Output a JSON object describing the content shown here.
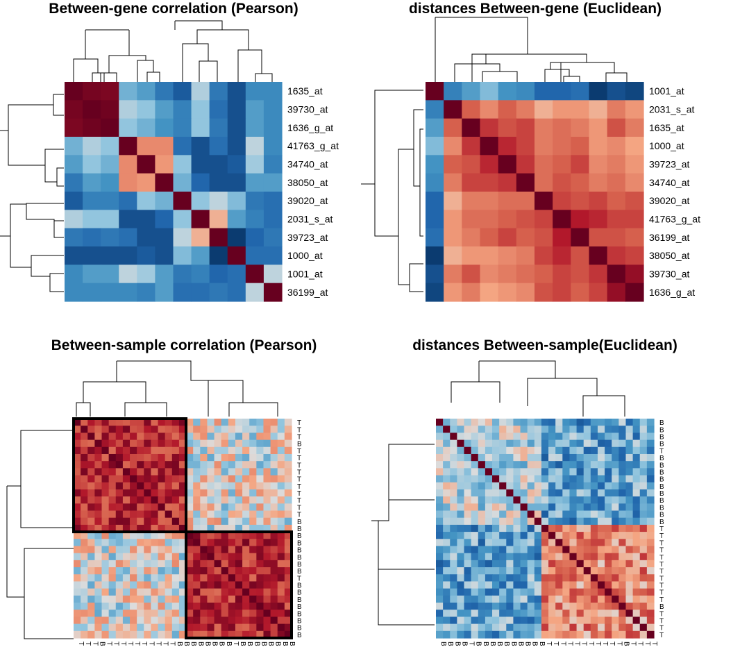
{
  "chart_data": [
    {
      "type": "heatmap",
      "title": "Between-gene correlation (Pearson)",
      "row_labels": [
        "1635_at",
        "39730_at",
        "1636_g_at",
        "41763_g_at",
        "34740_at",
        "38050_at",
        "39020_at",
        "2031_s_at",
        "39723_at",
        "1000_at",
        "1001_at",
        "36199_at"
      ],
      "values": [
        [
          1.0,
          0.95,
          0.93,
          -0.35,
          -0.45,
          -0.65,
          -0.8,
          -0.15,
          -0.65,
          -0.85,
          -0.55,
          -0.55
        ],
        [
          0.95,
          1.0,
          0.97,
          -0.15,
          -0.25,
          -0.45,
          -0.6,
          -0.25,
          -0.7,
          -0.85,
          -0.45,
          -0.55
        ],
        [
          0.93,
          0.97,
          1.0,
          -0.25,
          -0.35,
          -0.5,
          -0.6,
          -0.25,
          -0.65,
          -0.85,
          -0.45,
          -0.55
        ],
        [
          -0.35,
          -0.15,
          -0.25,
          1.0,
          0.35,
          0.35,
          -0.7,
          -0.85,
          -0.7,
          -0.85,
          -0.1,
          -0.55
        ],
        [
          -0.45,
          -0.25,
          -0.35,
          0.35,
          1.0,
          0.3,
          -0.25,
          -0.85,
          -0.85,
          -0.8,
          -0.2,
          -0.6
        ],
        [
          -0.65,
          -0.45,
          -0.5,
          0.35,
          0.3,
          1.0,
          -0.35,
          -0.75,
          -0.85,
          -0.85,
          -0.45,
          -0.45
        ],
        [
          -0.8,
          -0.6,
          -0.6,
          -0.7,
          -0.25,
          -0.35,
          1.0,
          -0.25,
          -0.1,
          -0.3,
          -0.65,
          -0.7
        ],
        [
          -0.15,
          -0.25,
          -0.25,
          -0.85,
          -0.85,
          -0.75,
          -0.25,
          1.0,
          0.2,
          -0.45,
          -0.6,
          -0.7
        ],
        [
          -0.65,
          -0.7,
          -0.65,
          -0.7,
          -0.85,
          -0.85,
          -0.1,
          0.2,
          1.0,
          -0.95,
          -0.75,
          -0.65
        ],
        [
          -0.85,
          -0.85,
          -0.85,
          -0.85,
          -0.8,
          -0.85,
          -0.3,
          -0.45,
          -0.95,
          1.0,
          -0.7,
          -0.7
        ],
        [
          -0.55,
          -0.45,
          -0.45,
          -0.1,
          -0.2,
          -0.45,
          -0.65,
          -0.6,
          -0.75,
          -0.7,
          1.0,
          -0.1
        ],
        [
          -0.55,
          -0.55,
          -0.55,
          -0.55,
          -0.6,
          -0.45,
          -0.7,
          -0.7,
          -0.65,
          -0.7,
          -0.1,
          1.0
        ]
      ],
      "highlight_blocks": []
    },
    {
      "type": "heatmap",
      "title": "distances Between-gene (Euclidean)",
      "row_labels": [
        "1001_at",
        "2031_s_at",
        "1635_at",
        "1000_at",
        "39723_at",
        "34740_at",
        "39020_at",
        "41763_g_at",
        "36199_at",
        "38050_at",
        "39730_at",
        "1636_g_at"
      ],
      "values": [
        [
          1.0,
          -0.6,
          -0.45,
          -0.3,
          -0.5,
          -0.55,
          -0.75,
          -0.75,
          -0.7,
          -0.95,
          -0.85,
          -0.9
        ],
        [
          -0.6,
          1.0,
          0.5,
          0.35,
          0.5,
          0.4,
          0.2,
          0.3,
          0.3,
          0.2,
          0.4,
          0.3
        ],
        [
          -0.45,
          0.5,
          1.0,
          0.65,
          0.55,
          0.6,
          0.4,
          0.45,
          0.4,
          0.3,
          0.55,
          0.4
        ],
        [
          -0.3,
          0.35,
          0.65,
          1.0,
          0.7,
          0.6,
          0.4,
          0.45,
          0.5,
          0.3,
          0.35,
          0.25
        ],
        [
          -0.5,
          0.5,
          0.55,
          0.7,
          1.0,
          0.65,
          0.45,
          0.5,
          0.6,
          0.35,
          0.4,
          0.3
        ],
        [
          -0.55,
          0.4,
          0.6,
          0.6,
          0.65,
          1.0,
          0.45,
          0.55,
          0.5,
          0.4,
          0.45,
          0.35
        ],
        [
          -0.75,
          0.2,
          0.4,
          0.4,
          0.45,
          0.45,
          1.0,
          0.6,
          0.55,
          0.6,
          0.5,
          0.55
        ],
        [
          -0.75,
          0.3,
          0.45,
          0.45,
          0.5,
          0.55,
          0.6,
          1.0,
          0.75,
          0.7,
          0.6,
          0.6
        ],
        [
          -0.7,
          0.3,
          0.4,
          0.5,
          0.6,
          0.5,
          0.55,
          0.75,
          1.0,
          0.55,
          0.55,
          0.5
        ],
        [
          -0.95,
          0.2,
          0.3,
          0.3,
          0.35,
          0.4,
          0.6,
          0.7,
          0.55,
          1.0,
          0.65,
          0.6
        ],
        [
          -0.85,
          0.4,
          0.55,
          0.35,
          0.4,
          0.45,
          0.5,
          0.6,
          0.55,
          0.65,
          1.0,
          0.85
        ],
        [
          -0.9,
          0.3,
          0.4,
          0.25,
          0.3,
          0.35,
          0.55,
          0.6,
          0.5,
          0.6,
          0.85,
          1.0
        ]
      ],
      "highlight_blocks": []
    },
    {
      "type": "heatmap",
      "title": "Between-sample correlation (Pearson)",
      "row_labels": [
        "T",
        "T",
        "T",
        "B",
        "T",
        "T",
        "T",
        "T",
        "T",
        "T",
        "T",
        "T",
        "T",
        "T",
        "B",
        "B",
        "B",
        "B",
        "B",
        "B",
        "B",
        "B",
        "T",
        "B",
        "B",
        "B",
        "B",
        "B",
        "B",
        "B",
        "B"
      ],
      "col_labels": [
        "T",
        "T",
        "T",
        "B",
        "T",
        "T",
        "T",
        "T",
        "T",
        "T",
        "T",
        "T",
        "T",
        "T",
        "B",
        "B",
        "B",
        "B",
        "B",
        "B",
        "B",
        "B",
        "T",
        "B",
        "B",
        "B",
        "B",
        "B",
        "B",
        "B",
        "B"
      ],
      "values": [],
      "highlight_blocks": [
        {
          "start": 0,
          "size": 16
        },
        {
          "start": 16,
          "size": 15
        }
      ]
    },
    {
      "type": "heatmap",
      "title": "distances Between-sample(Euclidean)",
      "row_labels": [
        "B",
        "B",
        "B",
        "B",
        "T",
        "B",
        "B",
        "B",
        "B",
        "B",
        "B",
        "B",
        "B",
        "B",
        "B",
        "T",
        "T",
        "T",
        "T",
        "T",
        "T",
        "T",
        "T",
        "T",
        "T",
        "T",
        "B",
        "T",
        "T",
        "T",
        "T"
      ],
      "col_labels": [
        "B",
        "B",
        "B",
        "B",
        "T",
        "B",
        "B",
        "B",
        "B",
        "B",
        "B",
        "B",
        "B",
        "B",
        "B",
        "T",
        "T",
        "T",
        "T",
        "T",
        "T",
        "T",
        "T",
        "T",
        "T",
        "T",
        "B",
        "T",
        "T",
        "T",
        "T"
      ],
      "values": [],
      "highlight_blocks": []
    }
  ]
}
